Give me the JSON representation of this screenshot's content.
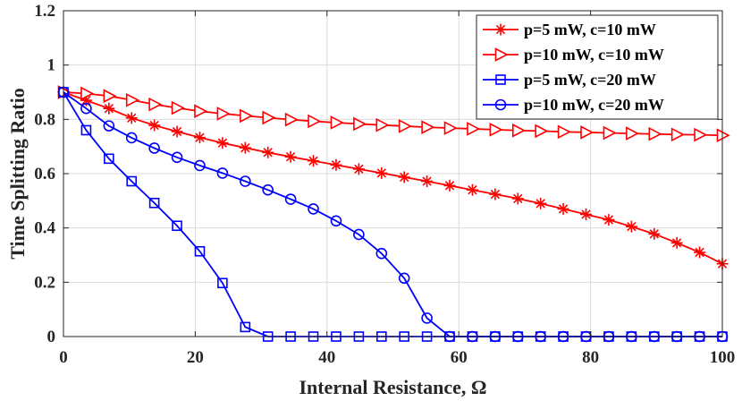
{
  "chart_data": {
    "type": "line",
    "title": "",
    "xlabel": "Internal Resistance, Ω",
    "ylabel": "Time Splitting Ratio",
    "xlim": [
      0,
      100
    ],
    "ylim": [
      0,
      1.2
    ],
    "xticks": [
      0,
      20,
      40,
      60,
      80,
      100
    ],
    "yticks": [
      0,
      0.2,
      0.4,
      0.6,
      0.8,
      1,
      1.2
    ],
    "ytick_labels": [
      "0",
      "0.2",
      "0.4",
      "0.6",
      "0.8",
      "1",
      "1.2"
    ],
    "grid": true,
    "legend_position": "top-right",
    "x": [
      0,
      3.45,
      6.9,
      10.34,
      13.79,
      17.24,
      20.69,
      24.14,
      27.59,
      31.03,
      34.48,
      37.93,
      41.38,
      44.83,
      48.28,
      51.72,
      55.17,
      58.62,
      62.07,
      65.52,
      68.97,
      72.41,
      75.86,
      79.31,
      82.76,
      86.21,
      89.66,
      93.1,
      96.55,
      100
    ],
    "series": [
      {
        "name": "p=5 mW, c=10 mW",
        "color": "#ff0000",
        "marker": "asterisk",
        "values": [
          0.9,
          0.87,
          0.84,
          0.805,
          0.778,
          0.755,
          0.733,
          0.713,
          0.695,
          0.678,
          0.662,
          0.647,
          0.632,
          0.617,
          0.602,
          0.587,
          0.572,
          0.556,
          0.54,
          0.524,
          0.508,
          0.49,
          0.47,
          0.45,
          0.43,
          0.405,
          0.378,
          0.345,
          0.31,
          0.268
        ]
      },
      {
        "name": "p=10 mW, c=10 mW",
        "color": "#ff0000",
        "marker": "triangle-right",
        "values": [
          0.9,
          0.895,
          0.886,
          0.871,
          0.855,
          0.842,
          0.83,
          0.821,
          0.813,
          0.806,
          0.799,
          0.793,
          0.788,
          0.783,
          0.779,
          0.775,
          0.771,
          0.768,
          0.765,
          0.762,
          0.759,
          0.757,
          0.754,
          0.752,
          0.75,
          0.748,
          0.746,
          0.744,
          0.743,
          0.741
        ]
      },
      {
        "name": "p=5 mW, c=20 mW",
        "color": "#0000ff",
        "marker": "square",
        "values": [
          0.9,
          0.76,
          0.655,
          0.572,
          0.492,
          0.408,
          0.314,
          0.197,
          0.035,
          0,
          0,
          0,
          0,
          0,
          0,
          0,
          0,
          0,
          0,
          0,
          0,
          0,
          0,
          0,
          0,
          0,
          0,
          0,
          0,
          0
        ]
      },
      {
        "name": "p=10 mW, c=20 mW",
        "color": "#0000ff",
        "marker": "circle",
        "values": [
          0.9,
          0.84,
          0.776,
          0.732,
          0.694,
          0.66,
          0.63,
          0.602,
          0.572,
          0.54,
          0.506,
          0.47,
          0.426,
          0.376,
          0.306,
          0.215,
          0.068,
          0,
          0,
          0,
          0,
          0,
          0,
          0,
          0,
          0,
          0,
          0,
          0,
          0
        ]
      }
    ]
  }
}
